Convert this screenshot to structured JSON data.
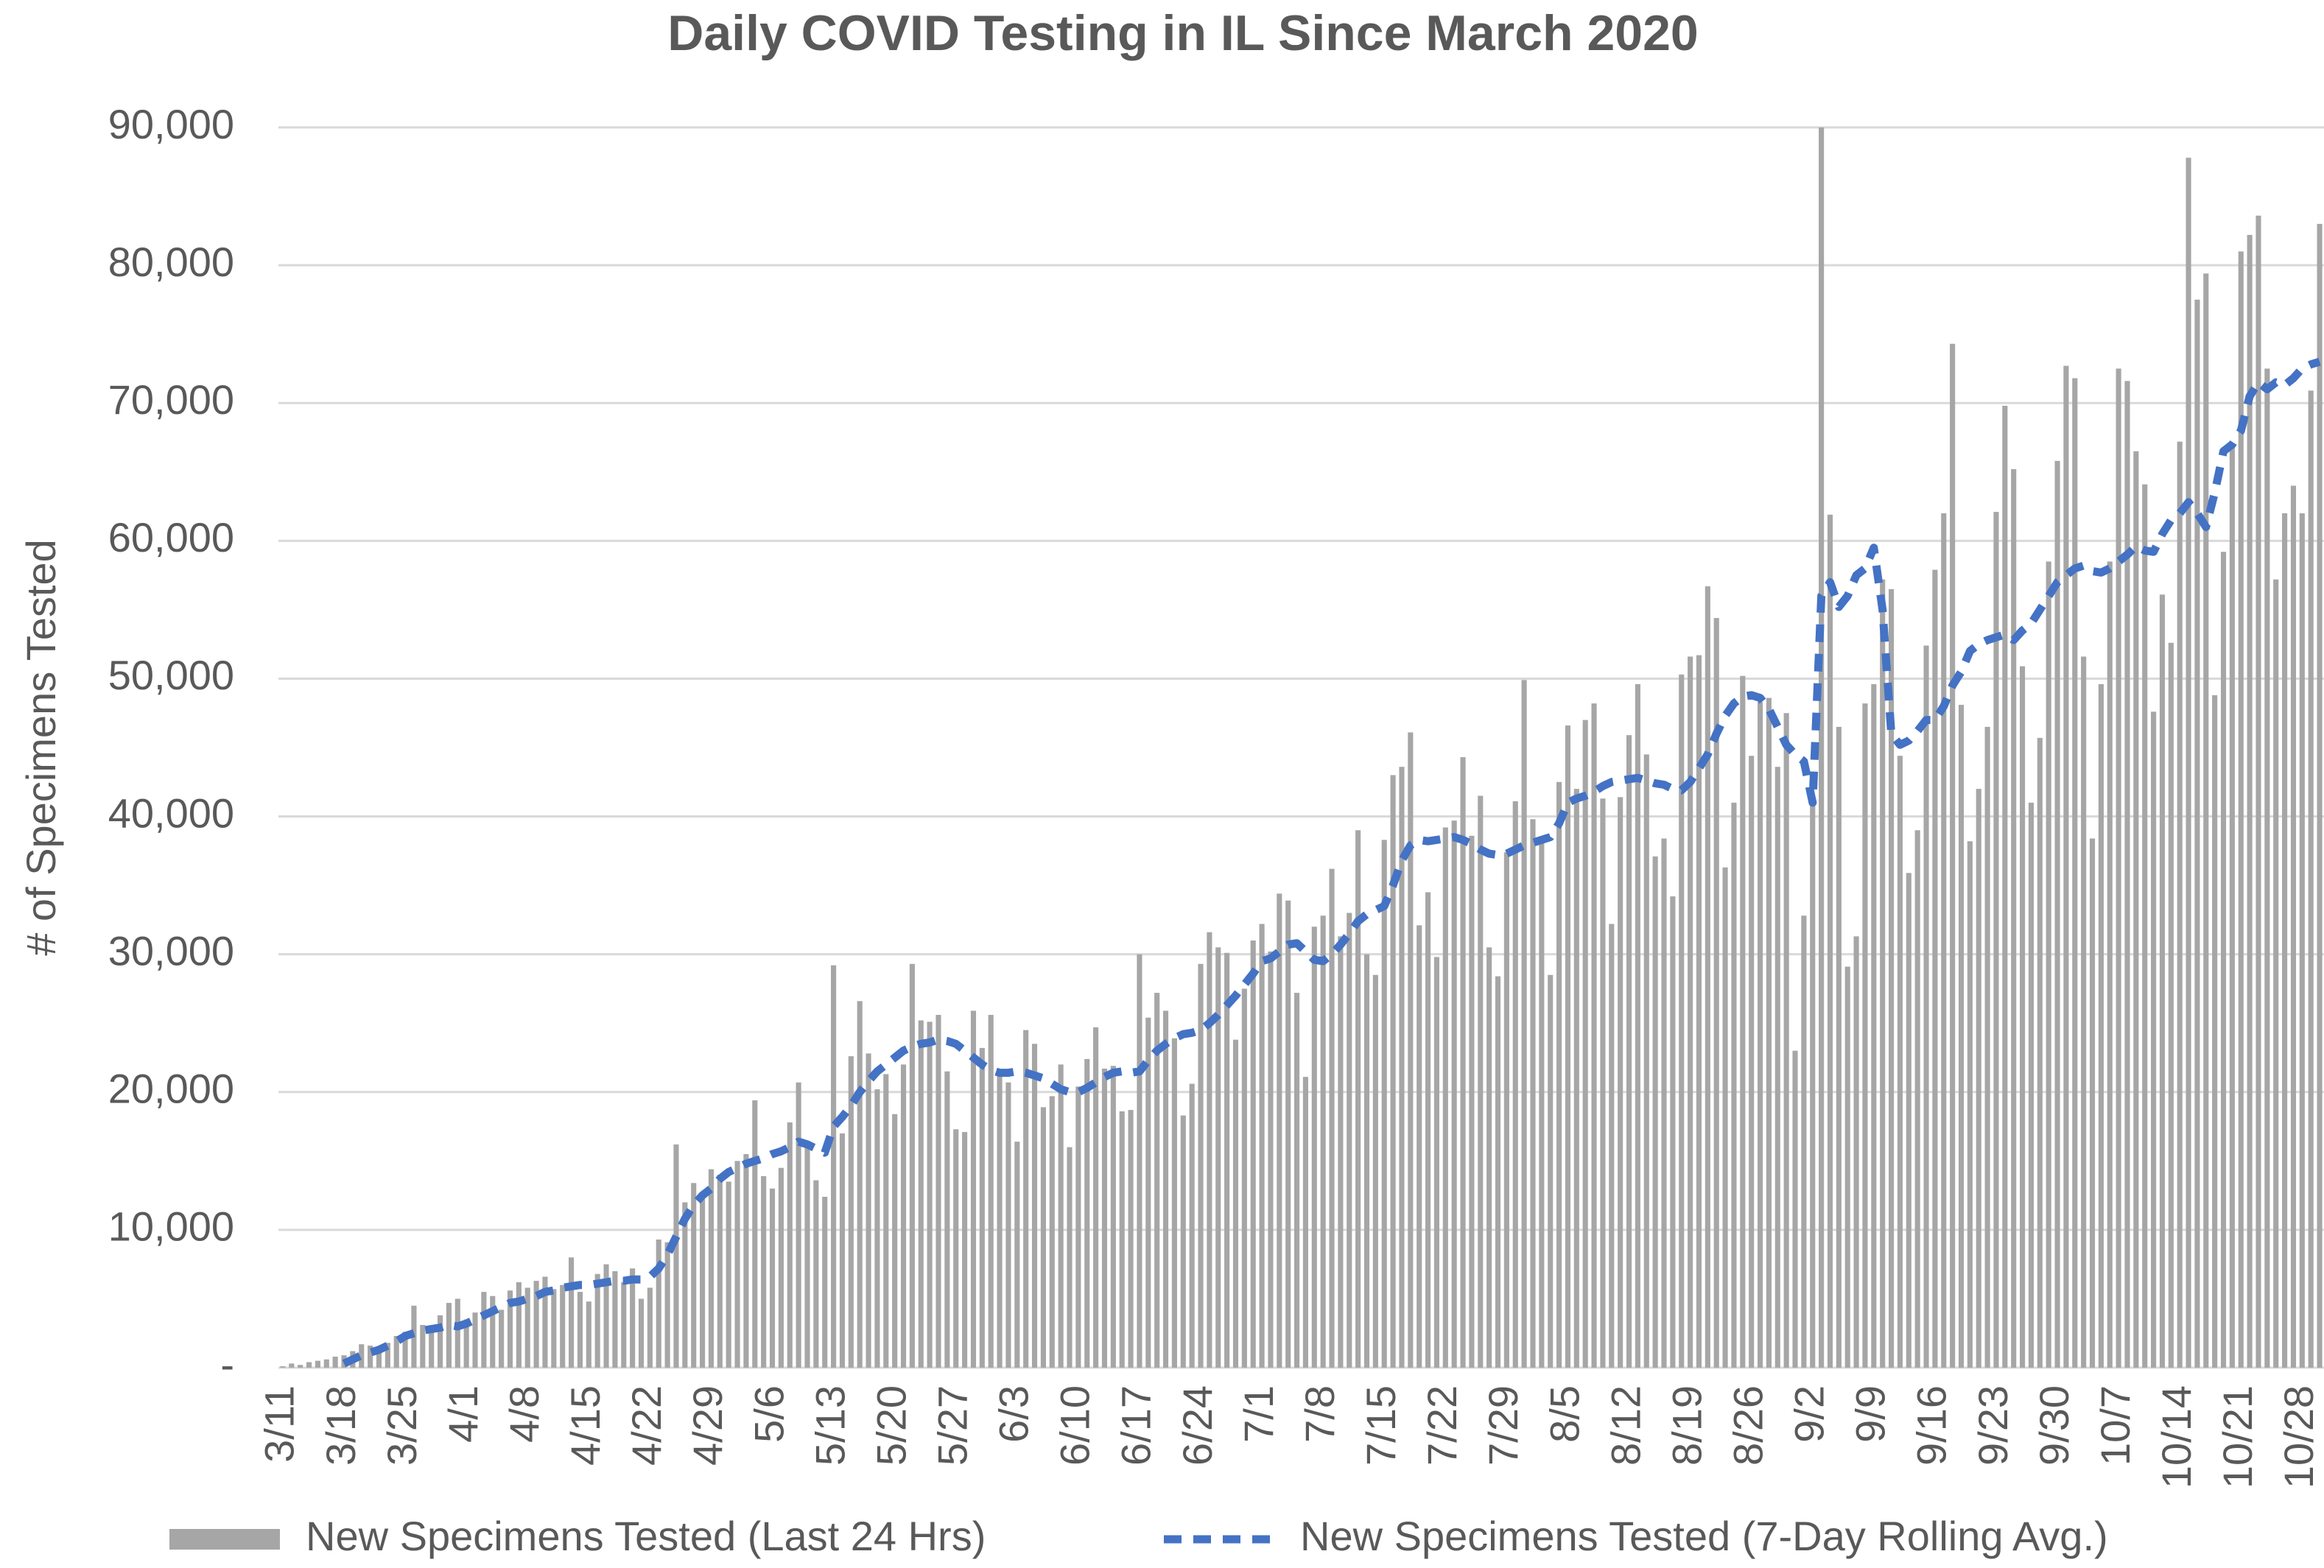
{
  "chart_data": {
    "type": "bar",
    "title": "Daily COVID Testing in IL Since March 2020",
    "y_label": "# of Specimens Tested",
    "categories": [
      "3/11",
      null,
      null,
      null,
      null,
      null,
      null,
      "3/18",
      null,
      null,
      null,
      null,
      null,
      null,
      "3/25",
      null,
      null,
      null,
      null,
      null,
      null,
      "4/1",
      null,
      null,
      null,
      null,
      null,
      null,
      "4/8",
      null,
      null,
      null,
      null,
      null,
      null,
      "4/15",
      null,
      null,
      null,
      null,
      null,
      null,
      "4/22",
      null,
      null,
      null,
      null,
      null,
      null,
      "4/29",
      null,
      null,
      null,
      null,
      null,
      null,
      "5/6",
      null,
      null,
      null,
      null,
      null,
      null,
      "5/13",
      null,
      null,
      null,
      null,
      null,
      null,
      "5/20",
      null,
      null,
      null,
      null,
      null,
      null,
      "5/27",
      null,
      null,
      null,
      null,
      null,
      null,
      "6/3",
      null,
      null,
      null,
      null,
      null,
      null,
      "6/10",
      null,
      null,
      null,
      null,
      null,
      null,
      "6/17",
      null,
      null,
      null,
      null,
      null,
      null,
      "6/24",
      null,
      null,
      null,
      null,
      null,
      null,
      "7/1",
      null,
      null,
      null,
      null,
      null,
      null,
      "7/8",
      null,
      null,
      null,
      null,
      null,
      null,
      "7/15",
      null,
      null,
      null,
      null,
      null,
      null,
      "7/22",
      null,
      null,
      null,
      null,
      null,
      null,
      "7/29",
      null,
      null,
      null,
      null,
      null,
      null,
      "8/5",
      null,
      null,
      null,
      null,
      null,
      null,
      "8/12",
      null,
      null,
      null,
      null,
      null,
      null,
      "8/19",
      null,
      null,
      null,
      null,
      null,
      null,
      "8/26",
      null,
      null,
      null,
      null,
      null,
      null,
      "9/2",
      null,
      null,
      null,
      null,
      null,
      null,
      "9/9",
      null,
      null,
      null,
      null,
      null,
      null,
      "9/16",
      null,
      null,
      null,
      null,
      null,
      null,
      "9/23",
      null,
      null,
      null,
      null,
      null,
      null,
      "9/30",
      null,
      null,
      null,
      null,
      null,
      null,
      "10/7",
      null,
      null,
      null,
      null,
      null,
      null,
      "10/14",
      null,
      null,
      null,
      null,
      null,
      null,
      "10/21",
      null,
      null,
      null,
      null,
      null,
      null,
      "10/28",
      null,
      null
    ],
    "series": [
      {
        "name": "New Specimens Tested (Last 24 Hrs)",
        "type": "bar",
        "color": "#a6a6a6",
        "values": [
          100,
          300,
          200,
          400,
          500,
          600,
          800,
          900,
          1200,
          1700,
          1600,
          1400,
          1800,
          2300,
          2600,
          4500,
          3100,
          2800,
          3800,
          4700,
          5000,
          3500,
          4000,
          5500,
          5200,
          4200,
          5600,
          6200,
          5800,
          6300,
          6600,
          5700,
          6000,
          8000,
          5500,
          4800,
          6800,
          7500,
          7000,
          6200,
          7200,
          5000,
          5800,
          9300,
          9100,
          16200,
          12000,
          13400,
          12300,
          14400,
          14000,
          13500,
          15000,
          15500,
          19400,
          13900,
          13000,
          14500,
          17800,
          20700,
          16000,
          13600,
          12400,
          29200,
          17000,
          22600,
          26600,
          22800,
          20200,
          21300,
          18400,
          22000,
          29300,
          25200,
          25100,
          25600,
          21500,
          17300,
          17100,
          25900,
          23200,
          25600,
          21600,
          20700,
          16400,
          24500,
          23500,
          18900,
          19700,
          22000,
          16000,
          20400,
          22400,
          24700,
          21700,
          21900,
          18600,
          18700,
          30000,
          25400,
          27200,
          25900,
          23900,
          18300,
          20600,
          29300,
          31600,
          30500,
          30100,
          23800,
          27500,
          31000,
          32200,
          30200,
          34400,
          33900,
          27200,
          21100,
          32000,
          32800,
          36200,
          31300,
          33000,
          39000,
          30000,
          28500,
          38300,
          43000,
          43600,
          46100,
          32100,
          34500,
          29800,
          39200,
          39700,
          44300,
          38600,
          41500,
          30500,
          28400,
          37400,
          41100,
          49900,
          39800,
          38300,
          28500,
          42500,
          46600,
          42000,
          47000,
          48200,
          41300,
          32200,
          41400,
          45900,
          49600,
          44500,
          37100,
          38400,
          34200,
          50300,
          51600,
          51700,
          56700,
          54400,
          36300,
          41000,
          50200,
          44400,
          48300,
          48600,
          43600,
          47500,
          23000,
          32800,
          40800,
          90000,
          61900,
          46500,
          29100,
          31300,
          48200,
          49600,
          57200,
          56500,
          44400,
          35900,
          39000,
          52400,
          57900,
          62000,
          74300,
          48100,
          38200,
          42000,
          46500,
          62100,
          69800,
          65200,
          50900,
          41000,
          45700,
          58500,
          65800,
          72700,
          71800,
          51600,
          38400,
          49600,
          58500,
          72500,
          71600,
          66500,
          64100,
          47600,
          56100,
          52600,
          67200,
          87800,
          77500,
          79400,
          48800,
          59200,
          66900,
          81000,
          82200,
          83600,
          72500,
          57200,
          62000,
          64000,
          62000,
          70900,
          83000
        ]
      },
      {
        "name": "New Specimens Tested (7-Day Rolling Avg.)",
        "type": "line",
        "color": "#4472c4",
        "dashed": true,
        "values": [
          null,
          null,
          null,
          null,
          null,
          null,
          null,
          300,
          600,
          900,
          1100,
          1300,
          1600,
          1900,
          2300,
          2500,
          2700,
          2800,
          2900,
          3100,
          3000,
          3200,
          3500,
          3800,
          4100,
          4400,
          4700,
          4800,
          5000,
          5200,
          5500,
          5600,
          5800,
          5900,
          6000,
          6000,
          6100,
          6200,
          6300,
          6300,
          6400,
          6400,
          6600,
          7200,
          8200,
          9500,
          10800,
          11800,
          12500,
          13000,
          13700,
          14200,
          14500,
          14800,
          15000,
          15200,
          15500,
          15700,
          16000,
          16400,
          16200,
          15900,
          15600,
          17500,
          18200,
          19000,
          20000,
          20800,
          21500,
          22000,
          22500,
          23000,
          23300,
          23500,
          23600,
          23800,
          23700,
          23500,
          23000,
          22500,
          22000,
          21600,
          21400,
          21400,
          21500,
          21400,
          21200,
          21000,
          20600,
          20200,
          20000,
          20000,
          20300,
          20700,
          21100,
          21400,
          21500,
          21400,
          21500,
          22300,
          23000,
          23500,
          23900,
          24200,
          24300,
          24500,
          25000,
          25600,
          26300,
          27000,
          27800,
          28600,
          29500,
          29700,
          30200,
          30700,
          30800,
          30200,
          29600,
          29500,
          30000,
          30700,
          31500,
          32400,
          32900,
          33200,
          33500,
          35000,
          36800,
          37900,
          38300,
          38200,
          38300,
          38400,
          38500,
          38300,
          38000,
          37600,
          37300,
          37200,
          37300,
          37600,
          37900,
          38100,
          38300,
          38500,
          39500,
          41000,
          41300,
          41500,
          41800,
          42200,
          42500,
          42600,
          42700,
          42800,
          42600,
          42400,
          42300,
          42000,
          41900,
          42500,
          43500,
          44500,
          46000,
          47300,
          48200,
          48700,
          48800,
          48600,
          47800,
          46500,
          45200,
          44500,
          44000,
          41000,
          56000,
          57000,
          55200,
          56000,
          57500,
          58000,
          59500,
          55000,
          46000,
          45200,
          45500,
          46200,
          47000,
          47000,
          48000,
          49500,
          50500,
          52000,
          52500,
          52800,
          53000,
          53200,
          52800,
          53500,
          54000,
          55000,
          56000,
          57000,
          57500,
          58000,
          58200,
          57800,
          57700,
          58000,
          58500,
          59000,
          59600,
          59300,
          59200,
          60500,
          61500,
          62000,
          62800,
          62000,
          61000,
          63500,
          66500,
          67000,
          68000,
          70500,
          71500,
          71000,
          71500,
          71300,
          71800,
          72500,
          72800,
          73000
        ]
      }
    ],
    "ylim": [
      0,
      90000
    ],
    "yticks": [
      {
        "value": 0,
        "label": "-"
      },
      {
        "value": 10000,
        "label": "10,000"
      },
      {
        "value": 20000,
        "label": "20,000"
      },
      {
        "value": 30000,
        "label": "30,000"
      },
      {
        "value": 40000,
        "label": "40,000"
      },
      {
        "value": 50000,
        "label": "50,000"
      },
      {
        "value": 60000,
        "label": "60,000"
      },
      {
        "value": 70000,
        "label": "70,000"
      },
      {
        "value": 80000,
        "label": "80,000"
      },
      {
        "value": 90000,
        "label": "90,000"
      }
    ],
    "grid": true,
    "legend": "bottom"
  }
}
